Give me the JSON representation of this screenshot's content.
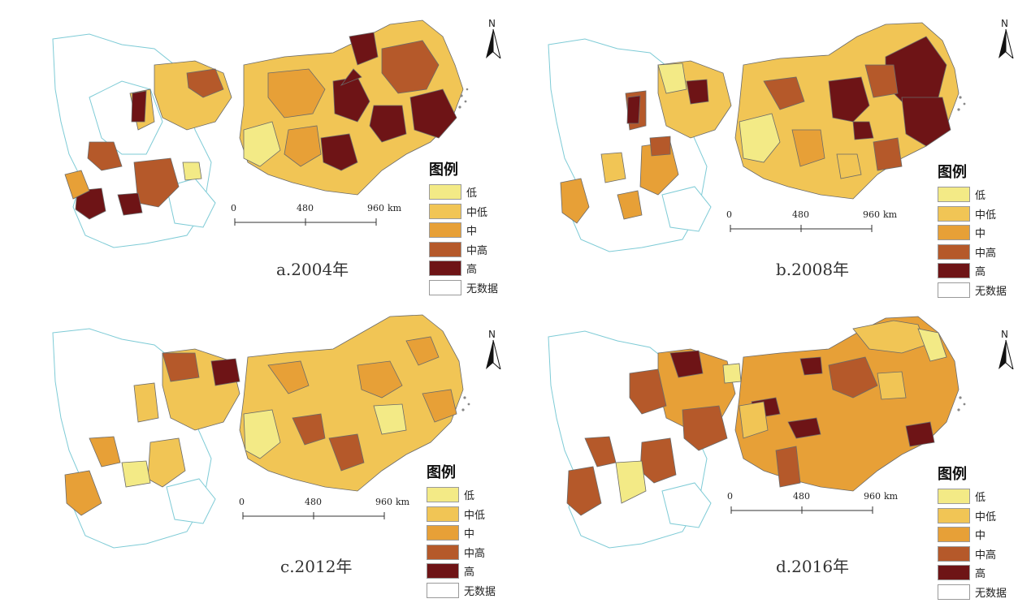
{
  "legend": {
    "title": "图例",
    "items": [
      {
        "label": "低",
        "color": "#f3ea86"
      },
      {
        "label": "中低",
        "color": "#f1c555"
      },
      {
        "label": "中",
        "color": "#e7a037"
      },
      {
        "label": "中高",
        "color": "#b5592a"
      },
      {
        "label": "高",
        "color": "#6e1416"
      },
      {
        "label": "无数据",
        "color": "#ffffff"
      }
    ]
  },
  "north_arrow": {
    "label": "N"
  },
  "scale_bar": {
    "ticks": [
      "0",
      "480",
      "960"
    ],
    "unit": "km"
  },
  "panels": [
    {
      "caption": "a.2004年",
      "dominant_classes": [
        "中低",
        "中",
        "中高",
        "高"
      ]
    },
    {
      "caption": "b.2008年",
      "dominant_classes": [
        "低",
        "中低",
        "中",
        "中高",
        "高"
      ]
    },
    {
      "caption": "c.2012年",
      "dominant_classes": [
        "低",
        "中低",
        "中",
        "中高",
        "高"
      ]
    },
    {
      "caption": "d.2016年",
      "dominant_classes": [
        "低",
        "中低",
        "中",
        "中高",
        "高"
      ]
    }
  ]
}
